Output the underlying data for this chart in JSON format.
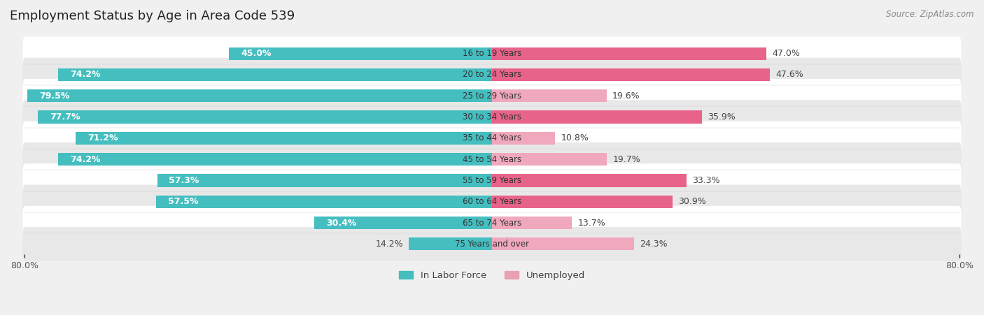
{
  "title": "Employment Status by Age in Area Code 539",
  "source": "Source: ZipAtlas.com",
  "age_groups": [
    "16 to 19 Years",
    "20 to 24 Years",
    "25 to 29 Years",
    "30 to 34 Years",
    "35 to 44 Years",
    "45 to 54 Years",
    "55 to 59 Years",
    "60 to 64 Years",
    "65 to 74 Years",
    "75 Years and over"
  ],
  "labor_force": [
    45.0,
    74.2,
    79.5,
    77.7,
    71.2,
    74.2,
    57.3,
    57.5,
    30.4,
    14.2
  ],
  "unemployed": [
    47.0,
    47.6,
    19.6,
    35.9,
    10.8,
    19.7,
    33.3,
    30.9,
    13.7,
    24.3
  ],
  "labor_color": "#45bec0",
  "unemployed_colors": [
    "#e8638a",
    "#e8638a",
    "#f0a8bc",
    "#e8638a",
    "#f0a8bc",
    "#f0a8bc",
    "#e8638a",
    "#e8638a",
    "#f0a8bc",
    "#f0a8bc"
  ],
  "axis_limit": 80.0,
  "bar_height": 0.6,
  "title_fontsize": 13,
  "source_fontsize": 8.5,
  "tick_fontsize": 9,
  "bar_label_fontsize": 9,
  "legend_fontsize": 9.5
}
